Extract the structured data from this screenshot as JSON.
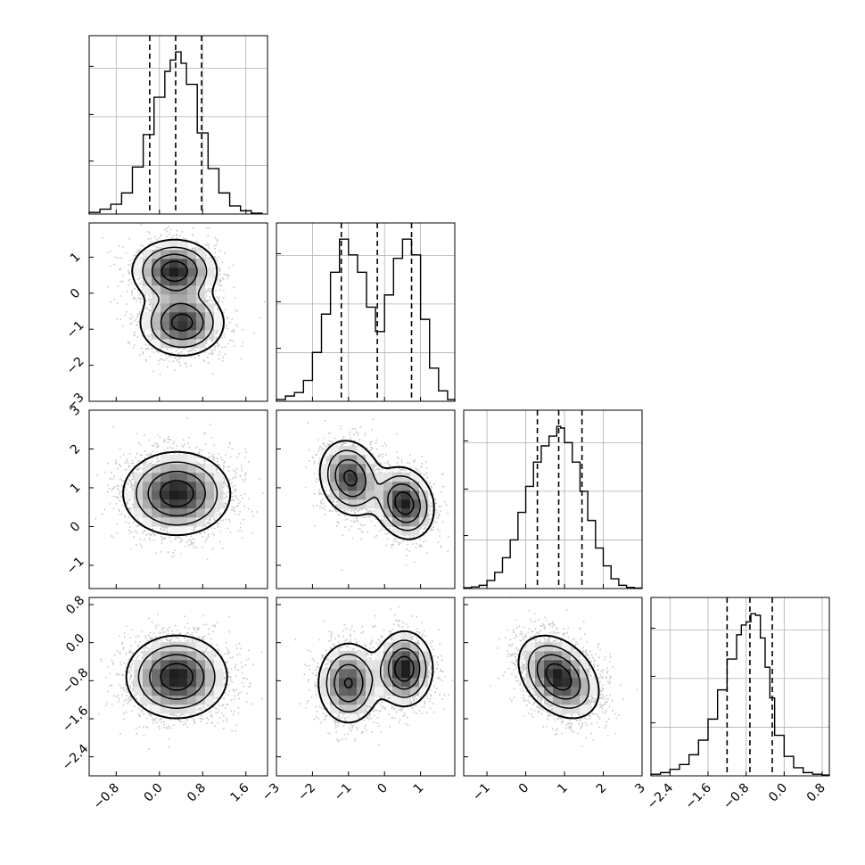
{
  "chart_data": {
    "type": "corner",
    "title": "",
    "grid": true,
    "n_params": 4,
    "axes": [
      {
        "index": 0,
        "range": [
          -1.3,
          2.0
        ],
        "ticks": [
          -0.8,
          0.0,
          0.8,
          1.6
        ],
        "tick_labels": [
          "−0.8",
          "0.0",
          "0.8",
          "1.6"
        ]
      },
      {
        "index": 1,
        "range": [
          -3.0,
          1.95
        ],
        "ticks": [
          -3,
          -2,
          -1,
          0,
          1
        ],
        "tick_labels": [
          "−3",
          "−2",
          "−1",
          "0",
          "1"
        ]
      },
      {
        "index": 2,
        "range": [
          -1.6,
          3.0
        ],
        "ticks": [
          -1,
          0,
          1,
          2,
          3
        ],
        "tick_labels": [
          "−1",
          "0",
          "1",
          "2",
          "3"
        ]
      },
      {
        "index": 3,
        "range": [
          -2.8,
          0.95
        ],
        "ticks": [
          -2.4,
          -1.6,
          -0.8,
          0.0,
          0.8
        ],
        "tick_labels": [
          "−2.4",
          "−1.6",
          "−0.8",
          "0.0",
          "0.8"
        ]
      }
    ],
    "histograms": [
      {
        "param": 0,
        "quantiles": [
          -0.18,
          0.3,
          0.78
        ],
        "bins": [
          -1.3,
          -1.1,
          -0.9,
          -0.7,
          -0.5,
          -0.3,
          -0.1,
          0.1,
          0.2,
          0.3,
          0.4,
          0.5,
          0.7,
          0.9,
          1.1,
          1.3,
          1.5,
          1.7,
          1.9
        ],
        "counts": [
          1,
          3,
          6,
          13,
          29,
          49,
          72,
          88,
          95,
          100,
          93,
          80,
          50,
          28,
          13,
          5,
          2,
          0.5
        ]
      },
      {
        "param": 1,
        "quantiles": [
          -1.2,
          -0.2,
          0.75
        ],
        "bins": [
          -3.0,
          -2.75,
          -2.5,
          -2.25,
          -2.0,
          -1.75,
          -1.5,
          -1.25,
          -1.0,
          -0.75,
          -0.5,
          -0.25,
          0.0,
          0.25,
          0.5,
          0.75,
          1.0,
          1.25,
          1.5,
          1.75,
          1.95
        ],
        "counts": [
          1,
          3,
          5,
          12,
          28,
          50,
          74,
          93,
          84,
          74,
          54,
          40,
          61,
          82,
          93,
          84,
          47,
          19,
          6,
          1
        ]
      },
      {
        "param": 2,
        "quantiles": [
          0.3,
          0.85,
          1.45
        ],
        "bins": [
          -1.6,
          -1.4,
          -1.2,
          -1.0,
          -0.8,
          -0.6,
          -0.4,
          -0.2,
          0.0,
          0.2,
          0.4,
          0.6,
          0.8,
          0.9,
          1.0,
          1.2,
          1.4,
          1.6,
          1.8,
          2.0,
          2.2,
          2.4,
          2.6,
          2.8,
          3.0
        ],
        "counts": [
          0.5,
          1,
          2,
          5,
          10,
          19,
          30,
          47,
          63,
          78,
          88,
          94,
          100,
          99,
          90,
          78,
          60,
          42,
          25,
          14,
          6,
          2,
          0.7,
          0.3
        ]
      },
      {
        "param": 3,
        "quantiles": [
          -1.2,
          -0.72,
          -0.25
        ],
        "bins": [
          -2.8,
          -2.6,
          -2.4,
          -2.2,
          -2.0,
          -1.8,
          -1.6,
          -1.4,
          -1.2,
          -1.0,
          -0.9,
          -0.8,
          -0.7,
          -0.6,
          -0.5,
          -0.4,
          -0.3,
          -0.2,
          0.0,
          0.2,
          0.4,
          0.6,
          0.8,
          0.95
        ],
        "counts": [
          1,
          2,
          4,
          7,
          13,
          22,
          35,
          53,
          72,
          87,
          93,
          95,
          100,
          99,
          85,
          67,
          48,
          25,
          12,
          5,
          2,
          1,
          0.5
        ]
      }
    ],
    "pairs": [
      {
        "x": 0,
        "y": 1,
        "components": [
          {
            "mx": 0.28,
            "my": 0.62,
            "sx": 0.38,
            "sy": 0.42,
            "rho": 0.0,
            "w": 0.5
          },
          {
            "mx": 0.42,
            "my": -0.82,
            "sx": 0.38,
            "sy": 0.45,
            "rho": 0.0,
            "w": 0.5
          }
        ]
      },
      {
        "x": 0,
        "y": 2,
        "components": [
          {
            "mx": 0.32,
            "my": 0.85,
            "sx": 0.48,
            "sy": 0.52,
            "rho": 0.0,
            "w": 1.0
          }
        ]
      },
      {
        "x": 1,
        "y": 2,
        "components": [
          {
            "mx": -0.95,
            "my": 1.25,
            "sx": 0.42,
            "sy": 0.48,
            "rho": -0.15,
            "w": 0.5
          },
          {
            "mx": 0.55,
            "my": 0.6,
            "sx": 0.4,
            "sy": 0.45,
            "rho": -0.15,
            "w": 0.5
          }
        ]
      },
      {
        "x": 0,
        "y": 3,
        "components": [
          {
            "mx": 0.32,
            "my": -0.72,
            "sx": 0.45,
            "sy": 0.42,
            "rho": 0.0,
            "w": 1.0
          }
        ]
      },
      {
        "x": 1,
        "y": 3,
        "components": [
          {
            "mx": -1.0,
            "my": -0.85,
            "sx": 0.42,
            "sy": 0.42,
            "rho": 0.0,
            "w": 0.5
          },
          {
            "mx": 0.55,
            "my": -0.55,
            "sx": 0.38,
            "sy": 0.38,
            "rho": 0.0,
            "w": 0.5
          }
        ]
      },
      {
        "x": 2,
        "y": 3,
        "components": [
          {
            "mx": 0.85,
            "my": -0.72,
            "sx": 0.5,
            "sy": 0.42,
            "rho": -0.35,
            "w": 1.0
          }
        ]
      }
    ]
  }
}
